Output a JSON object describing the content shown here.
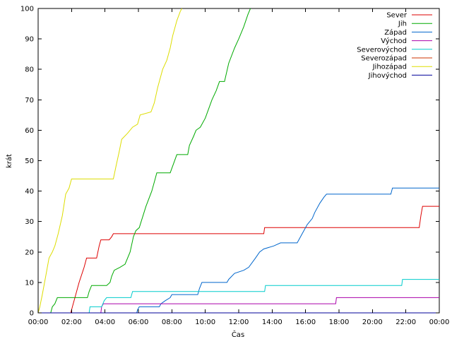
{
  "chart_data": {
    "type": "line",
    "title": "",
    "xlabel": "Čas",
    "ylabel": "krát",
    "xlim": [
      0,
      24
    ],
    "ylim": [
      0,
      100
    ],
    "x_ticks": [
      0,
      2,
      4,
      6,
      8,
      10,
      12,
      14,
      16,
      18,
      20,
      22,
      24
    ],
    "x_tick_labels": [
      "00:00",
      "02:00",
      "04:00",
      "06:00",
      "08:00",
      "10:00",
      "12:00",
      "14:00",
      "16:00",
      "18:00",
      "20:00",
      "22:00",
      "00:00"
    ],
    "y_ticks": [
      0,
      10,
      20,
      30,
      40,
      50,
      60,
      70,
      80,
      90,
      100
    ],
    "y_tick_labels": [
      "0",
      "10",
      "20",
      "30",
      "40",
      "50",
      "60",
      "70",
      "80",
      "90",
      "100"
    ],
    "grid": false,
    "legend_position": "top-right",
    "series": [
      {
        "name": "Sever",
        "color": "#dd0000",
        "points": [
          [
            0,
            0
          ],
          [
            1.95,
            0
          ],
          [
            2.05,
            2
          ],
          [
            2.2,
            5
          ],
          [
            2.45,
            10
          ],
          [
            2.75,
            15
          ],
          [
            2.9,
            18
          ],
          [
            3.5,
            18
          ],
          [
            3.65,
            22
          ],
          [
            3.75,
            24
          ],
          [
            4.25,
            24
          ],
          [
            4.4,
            25
          ],
          [
            4.5,
            26
          ],
          [
            13.5,
            26
          ],
          [
            13.55,
            28
          ],
          [
            22.8,
            28
          ],
          [
            22.9,
            32
          ],
          [
            23.0,
            35
          ],
          [
            24,
            35
          ]
        ]
      },
      {
        "name": "Jih",
        "color": "#00aa00",
        "points": [
          [
            0,
            0
          ],
          [
            0.75,
            0
          ],
          [
            0.85,
            2
          ],
          [
            1.0,
            3
          ],
          [
            1.15,
            5
          ],
          [
            2.95,
            5
          ],
          [
            3.05,
            7
          ],
          [
            3.2,
            9
          ],
          [
            4.1,
            9
          ],
          [
            4.3,
            10
          ],
          [
            4.4,
            12
          ],
          [
            4.55,
            14
          ],
          [
            4.9,
            15
          ],
          [
            5.2,
            16
          ],
          [
            5.5,
            20
          ],
          [
            5.7,
            25
          ],
          [
            5.85,
            27
          ],
          [
            6.05,
            28
          ],
          [
            6.45,
            35
          ],
          [
            6.8,
            40
          ],
          [
            7.0,
            44
          ],
          [
            7.1,
            46
          ],
          [
            7.9,
            46
          ],
          [
            8.1,
            49
          ],
          [
            8.3,
            52
          ],
          [
            8.95,
            52
          ],
          [
            9.05,
            55
          ],
          [
            9.3,
            58
          ],
          [
            9.45,
            60
          ],
          [
            9.7,
            61
          ],
          [
            10.0,
            64
          ],
          [
            10.4,
            70
          ],
          [
            10.65,
            73
          ],
          [
            10.85,
            76
          ],
          [
            11.15,
            76
          ],
          [
            11.4,
            82
          ],
          [
            11.75,
            87
          ],
          [
            12.0,
            90
          ],
          [
            12.3,
            94
          ],
          [
            12.55,
            98
          ],
          [
            12.7,
            100
          ]
        ]
      },
      {
        "name": "Západ",
        "color": "#0066cc",
        "points": [
          [
            0,
            0
          ],
          [
            5.9,
            0
          ],
          [
            5.95,
            1
          ],
          [
            6.05,
            2
          ],
          [
            7.25,
            2
          ],
          [
            7.35,
            3
          ],
          [
            7.6,
            4
          ],
          [
            7.9,
            5
          ],
          [
            8.0,
            6
          ],
          [
            9.55,
            6
          ],
          [
            9.65,
            8
          ],
          [
            9.8,
            10
          ],
          [
            11.3,
            10
          ],
          [
            11.4,
            11
          ],
          [
            11.75,
            13
          ],
          [
            12.3,
            14
          ],
          [
            12.6,
            15
          ],
          [
            13.0,
            18
          ],
          [
            13.25,
            20
          ],
          [
            13.5,
            21
          ],
          [
            14.1,
            22
          ],
          [
            14.5,
            23
          ],
          [
            15.5,
            23
          ],
          [
            15.8,
            26
          ],
          [
            16.1,
            29
          ],
          [
            16.4,
            31
          ],
          [
            16.55,
            33
          ],
          [
            16.85,
            36
          ],
          [
            17.1,
            38
          ],
          [
            17.25,
            39
          ],
          [
            21.1,
            39
          ],
          [
            21.2,
            41
          ],
          [
            24,
            41
          ]
        ]
      },
      {
        "name": "Východ",
        "color": "#aa00aa",
        "points": [
          [
            0,
            0
          ],
          [
            3.75,
            0
          ],
          [
            3.8,
            2
          ],
          [
            3.9,
            3
          ],
          [
            17.8,
            3
          ],
          [
            17.85,
            5
          ],
          [
            24,
            5
          ]
        ]
      },
      {
        "name": "Severovýchod",
        "color": "#00cccc",
        "points": [
          [
            0,
            0
          ],
          [
            3.05,
            0
          ],
          [
            3.1,
            2
          ],
          [
            3.8,
            2
          ],
          [
            3.95,
            4
          ],
          [
            4.1,
            5
          ],
          [
            5.55,
            5
          ],
          [
            5.65,
            7
          ],
          [
            13.55,
            7
          ],
          [
            13.6,
            9
          ],
          [
            21.75,
            9
          ],
          [
            21.8,
            11
          ],
          [
            24,
            11
          ]
        ]
      },
      {
        "name": "Severozápad",
        "color": "#cc3300",
        "points": [
          [
            0,
            0
          ],
          [
            24,
            0
          ]
        ]
      },
      {
        "name": "Jihozápad",
        "color": "#dddd00",
        "points": [
          [
            0,
            0
          ],
          [
            0.1,
            2
          ],
          [
            0.25,
            6
          ],
          [
            0.45,
            12
          ],
          [
            0.65,
            18
          ],
          [
            0.85,
            20
          ],
          [
            1.0,
            22
          ],
          [
            1.2,
            26
          ],
          [
            1.45,
            32
          ],
          [
            1.65,
            39
          ],
          [
            1.85,
            41
          ],
          [
            2.0,
            44
          ],
          [
            4.5,
            44
          ],
          [
            4.65,
            48
          ],
          [
            4.85,
            53
          ],
          [
            5.0,
            57
          ],
          [
            5.35,
            59
          ],
          [
            5.65,
            61
          ],
          [
            5.95,
            62
          ],
          [
            6.1,
            65
          ],
          [
            6.75,
            66
          ],
          [
            6.95,
            69
          ],
          [
            7.15,
            74
          ],
          [
            7.45,
            80
          ],
          [
            7.7,
            83
          ],
          [
            7.9,
            87
          ],
          [
            8.05,
            91
          ],
          [
            8.3,
            96
          ],
          [
            8.5,
            99
          ],
          [
            8.6,
            100
          ]
        ]
      },
      {
        "name": "Jihovýchod",
        "color": "#000099",
        "points": [
          [
            0,
            0
          ],
          [
            24,
            0
          ]
        ]
      }
    ]
  }
}
